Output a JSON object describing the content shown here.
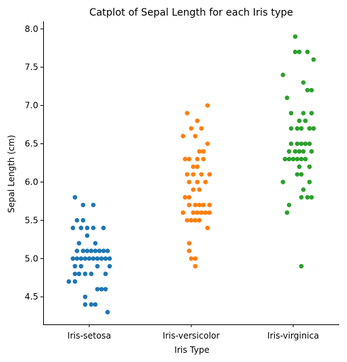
{
  "chart_data": {
    "type": "scatter",
    "subtype": "strip plot (categorical scatter with jitter)",
    "title": "Catplot of Sepal Length for each Iris type",
    "xlabel": "Iris Type",
    "ylabel": "Sepal Length (cm)",
    "categories": [
      "Iris-setosa",
      "Iris-versicolor",
      "Iris-virginica"
    ],
    "ylim": [
      4.14,
      8.1
    ],
    "yticks": [
      4.5,
      5.0,
      5.5,
      6.0,
      6.5,
      7.0,
      7.5,
      8.0
    ],
    "ytick_labels": [
      "4.5",
      "5.0",
      "5.5",
      "6.0",
      "6.5",
      "7.0",
      "7.5",
      "8.0"
    ],
    "grid": false,
    "legend": "none",
    "series": [
      {
        "category": "Iris-setosa",
        "color": "#1f77b4",
        "points": [
          {
            "j": -0.14,
            "y": 5.8
          },
          {
            "j": -0.06,
            "y": 5.7
          },
          {
            "j": 0.04,
            "y": 5.7
          },
          {
            "j": -0.12,
            "y": 5.5
          },
          {
            "j": -0.06,
            "y": 5.5
          },
          {
            "j": -0.16,
            "y": 5.4
          },
          {
            "j": -0.08,
            "y": 5.4
          },
          {
            "j": -0.02,
            "y": 5.4
          },
          {
            "j": 0.04,
            "y": 5.4
          },
          {
            "j": 0.14,
            "y": 5.4
          },
          {
            "j": -0.02,
            "y": 5.3
          },
          {
            "j": -0.1,
            "y": 5.2
          },
          {
            "j": 0.06,
            "y": 5.2
          },
          {
            "j": -0.12,
            "y": 5.1
          },
          {
            "j": -0.06,
            "y": 5.1
          },
          {
            "j": -0.02,
            "y": 5.1
          },
          {
            "j": 0.02,
            "y": 5.1
          },
          {
            "j": 0.06,
            "y": 5.1
          },
          {
            "j": 0.1,
            "y": 5.1
          },
          {
            "j": 0.14,
            "y": 5.1
          },
          {
            "j": 0.18,
            "y": 5.1
          },
          {
            "j": -0.16,
            "y": 5.0
          },
          {
            "j": -0.12,
            "y": 5.0
          },
          {
            "j": -0.08,
            "y": 5.0
          },
          {
            "j": -0.04,
            "y": 5.0
          },
          {
            "j": 0.0,
            "y": 5.0
          },
          {
            "j": 0.04,
            "y": 5.0
          },
          {
            "j": 0.08,
            "y": 5.0
          },
          {
            "j": 0.12,
            "y": 5.0
          },
          {
            "j": 0.16,
            "y": 5.0
          },
          {
            "j": 0.2,
            "y": 5.0
          },
          {
            "j": -0.14,
            "y": 4.9
          },
          {
            "j": -0.08,
            "y": 4.9
          },
          {
            "j": 0.08,
            "y": 4.9
          },
          {
            "j": 0.2,
            "y": 4.9
          },
          {
            "j": -0.14,
            "y": 4.8
          },
          {
            "j": -0.1,
            "y": 4.8
          },
          {
            "j": -0.04,
            "y": 4.8
          },
          {
            "j": 0.02,
            "y": 4.8
          },
          {
            "j": 0.16,
            "y": 4.8
          },
          {
            "j": -0.2,
            "y": 4.7
          },
          {
            "j": -0.14,
            "y": 4.7
          },
          {
            "j": 0.08,
            "y": 4.6
          },
          {
            "j": 0.12,
            "y": 4.6
          },
          {
            "j": 0.16,
            "y": 4.6
          },
          {
            "j": -0.04,
            "y": 4.5
          },
          {
            "j": -0.04,
            "y": 4.4
          },
          {
            "j": 0.02,
            "y": 4.4
          },
          {
            "j": 0.06,
            "y": 4.4
          },
          {
            "j": 0.18,
            "y": 4.3
          }
        ]
      },
      {
        "category": "Iris-versicolor",
        "color": "#ff7f0e",
        "points": [
          {
            "j": 0.16,
            "y": 7.0
          },
          {
            "j": -0.04,
            "y": 6.9
          },
          {
            "j": 0.06,
            "y": 6.8
          },
          {
            "j": 0.0,
            "y": 6.7
          },
          {
            "j": 0.1,
            "y": 6.7
          },
          {
            "j": -0.08,
            "y": 6.6
          },
          {
            "j": 0.04,
            "y": 6.6
          },
          {
            "j": 0.16,
            "y": 6.5
          },
          {
            "j": 0.08,
            "y": 6.4
          },
          {
            "j": 0.12,
            "y": 6.4
          },
          {
            "j": -0.06,
            "y": 6.3
          },
          {
            "j": -0.02,
            "y": 6.3
          },
          {
            "j": 0.06,
            "y": 6.3
          },
          {
            "j": 0.12,
            "y": 6.3
          },
          {
            "j": 0.02,
            "y": 6.2
          },
          {
            "j": 0.06,
            "y": 6.2
          },
          {
            "j": -0.04,
            "y": 6.1
          },
          {
            "j": 0.02,
            "y": 6.1
          },
          {
            "j": 0.1,
            "y": 6.1
          },
          {
            "j": 0.18,
            "y": 6.1
          },
          {
            "j": -0.02,
            "y": 6.0
          },
          {
            "j": 0.06,
            "y": 6.0
          },
          {
            "j": 0.14,
            "y": 6.0
          },
          {
            "j": 0.02,
            "y": 5.9
          },
          {
            "j": 0.08,
            "y": 5.9
          },
          {
            "j": -0.06,
            "y": 5.8
          },
          {
            "j": -0.02,
            "y": 5.8
          },
          {
            "j": -0.02,
            "y": 5.7
          },
          {
            "j": 0.04,
            "y": 5.7
          },
          {
            "j": 0.08,
            "y": 5.7
          },
          {
            "j": 0.12,
            "y": 5.7
          },
          {
            "j": 0.18,
            "y": 5.7
          },
          {
            "j": -0.08,
            "y": 5.6
          },
          {
            "j": 0.02,
            "y": 5.6
          },
          {
            "j": 0.06,
            "y": 5.6
          },
          {
            "j": 0.1,
            "y": 5.6
          },
          {
            "j": 0.14,
            "y": 5.6
          },
          {
            "j": 0.18,
            "y": 5.6
          },
          {
            "j": -0.04,
            "y": 5.5
          },
          {
            "j": 0.0,
            "y": 5.5
          },
          {
            "j": 0.04,
            "y": 5.5
          },
          {
            "j": 0.08,
            "y": 5.5
          },
          {
            "j": 0.16,
            "y": 5.4
          },
          {
            "j": -0.02,
            "y": 5.2
          },
          {
            "j": -0.02,
            "y": 5.1
          },
          {
            "j": 0.0,
            "y": 5.0
          },
          {
            "j": 0.04,
            "y": 5.0
          },
          {
            "j": 0.04,
            "y": 4.9
          }
        ]
      },
      {
        "category": "Iris-virginica",
        "color": "#2ca02c",
        "points": [
          {
            "j": 0.02,
            "y": 7.9
          },
          {
            "j": 0.02,
            "y": 7.7
          },
          {
            "j": 0.06,
            "y": 7.7
          },
          {
            "j": 0.14,
            "y": 7.7
          },
          {
            "j": 0.2,
            "y": 7.6
          },
          {
            "j": -0.1,
            "y": 7.4
          },
          {
            "j": 0.1,
            "y": 7.3
          },
          {
            "j": 0.14,
            "y": 7.2
          },
          {
            "j": 0.18,
            "y": 7.2
          },
          {
            "j": -0.06,
            "y": 7.1
          },
          {
            "j": -0.02,
            "y": 6.9
          },
          {
            "j": 0.1,
            "y": 6.9
          },
          {
            "j": 0.18,
            "y": 6.9
          },
          {
            "j": 0.06,
            "y": 6.8
          },
          {
            "j": 0.12,
            "y": 6.8
          },
          {
            "j": -0.02,
            "y": 6.7
          },
          {
            "j": 0.04,
            "y": 6.7
          },
          {
            "j": 0.08,
            "y": 6.7
          },
          {
            "j": 0.16,
            "y": 6.7
          },
          {
            "j": 0.2,
            "y": 6.7
          },
          {
            "j": -0.02,
            "y": 6.5
          },
          {
            "j": 0.04,
            "y": 6.5
          },
          {
            "j": 0.08,
            "y": 6.5
          },
          {
            "j": 0.12,
            "y": 6.5
          },
          {
            "j": 0.16,
            "y": 6.5
          },
          {
            "j": -0.04,
            "y": 6.4
          },
          {
            "j": 0.02,
            "y": 6.4
          },
          {
            "j": 0.06,
            "y": 6.4
          },
          {
            "j": 0.1,
            "y": 6.4
          },
          {
            "j": 0.18,
            "y": 6.4
          },
          {
            "j": -0.08,
            "y": 6.3
          },
          {
            "j": -0.04,
            "y": 6.3
          },
          {
            "j": 0.0,
            "y": 6.3
          },
          {
            "j": 0.04,
            "y": 6.3
          },
          {
            "j": 0.08,
            "y": 6.3
          },
          {
            "j": 0.12,
            "y": 6.3
          },
          {
            "j": 0.06,
            "y": 6.2
          },
          {
            "j": 0.16,
            "y": 6.2
          },
          {
            "j": 0.04,
            "y": 6.1
          },
          {
            "j": 0.08,
            "y": 6.1
          },
          {
            "j": -0.1,
            "y": 6.0
          },
          {
            "j": 0.16,
            "y": 6.0
          },
          {
            "j": 0.1,
            "y": 5.9
          },
          {
            "j": 0.08,
            "y": 5.8
          },
          {
            "j": 0.14,
            "y": 5.8
          },
          {
            "j": 0.18,
            "y": 5.8
          },
          {
            "j": -0.04,
            "y": 5.7
          },
          {
            "j": -0.06,
            "y": 5.6
          },
          {
            "j": 0.08,
            "y": 4.9
          }
        ]
      }
    ]
  }
}
